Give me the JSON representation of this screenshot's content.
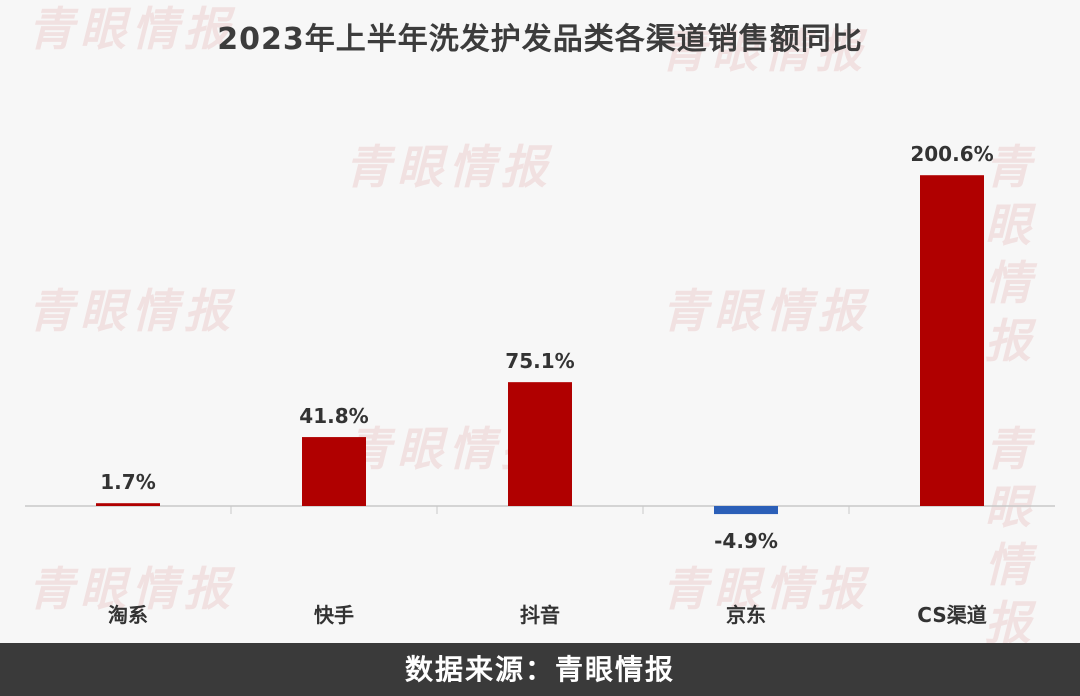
{
  "chart_data": {
    "type": "bar",
    "title": "2023年上半年洗发护发品类各渠道销售额同比",
    "categories": [
      "淘系",
      "快手",
      "抖音",
      "京东",
      "CS渠道"
    ],
    "values": [
      1.7,
      41.8,
      75.1,
      -4.9,
      200.6
    ],
    "data_labels": [
      "1.7%",
      "41.8%",
      "75.1%",
      "-4.9%",
      "200.6%"
    ],
    "unit": "%",
    "ylim": [
      -5,
      210
    ],
    "grid": false,
    "legend": "none",
    "colors": {
      "positive": "#b00000",
      "negative": "#2b5fb8",
      "axis": "#c8c8c8",
      "label": "#333333"
    }
  },
  "watermark": "青眼情报",
  "footer": {
    "source": "数据来源：青眼情报"
  }
}
